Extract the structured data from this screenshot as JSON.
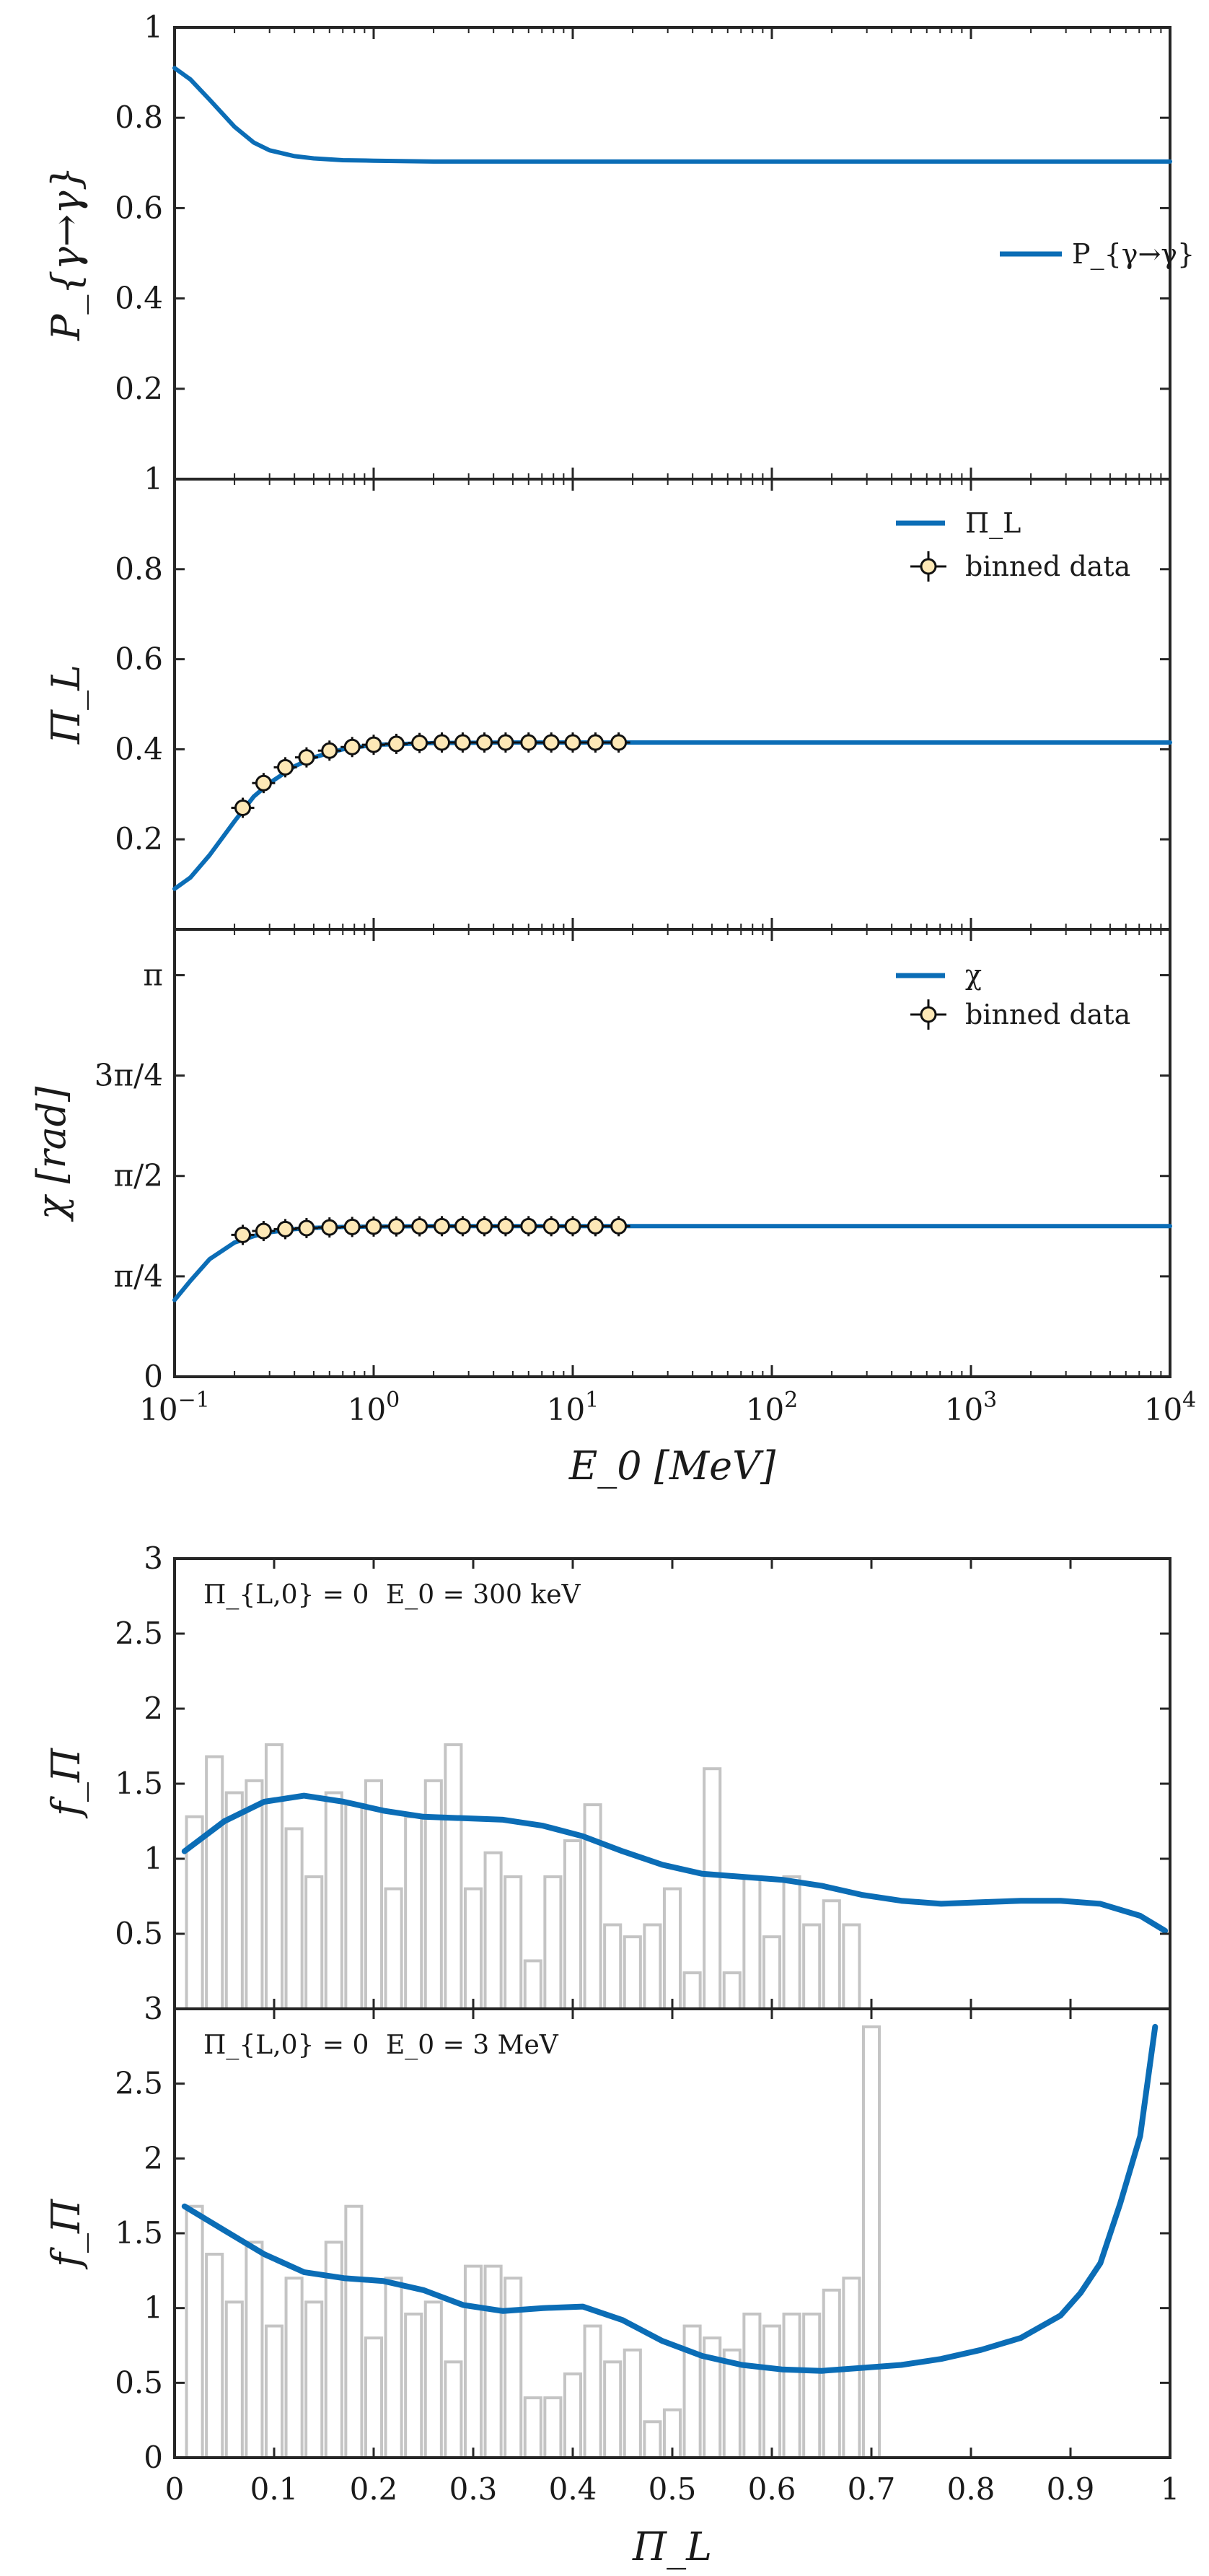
{
  "chart_data": [
    {
      "type": "line",
      "panel": "top",
      "xscale": "log",
      "xlim": [
        0.1,
        10000
      ],
      "ylim": [
        0,
        1
      ],
      "ylabel": "P_{γ→γ}",
      "yticks": [
        0.2,
        0.4,
        0.6,
        0.8,
        1
      ],
      "ytick_labels": [
        "0.2",
        "0.4",
        "0.6",
        "0.8",
        "1"
      ],
      "legend": {
        "placement": "right",
        "entries": [
          "P_{γ→γ}"
        ]
      },
      "series": [
        {
          "name": "P_{γ→γ}",
          "color": "#0b6db6",
          "x": [
            0.1,
            0.12,
            0.15,
            0.2,
            0.25,
            0.3,
            0.4,
            0.5,
            0.7,
            1,
            2,
            5,
            10,
            100,
            10000
          ],
          "y": [
            0.91,
            0.885,
            0.84,
            0.78,
            0.745,
            0.728,
            0.715,
            0.71,
            0.706,
            0.705,
            0.703,
            0.703,
            0.703,
            0.703,
            0.703
          ]
        }
      ]
    },
    {
      "type": "line",
      "panel": "middle",
      "xscale": "log",
      "xlim": [
        0.1,
        10000
      ],
      "ylim": [
        0,
        1
      ],
      "ylabel": "Π_L",
      "yticks": [
        0.2,
        0.4,
        0.6,
        0.8,
        1
      ],
      "ytick_labels": [
        "0.2",
        "0.4",
        "0.6",
        "0.8",
        "1"
      ],
      "legend": {
        "placement": "top-right",
        "entries": [
          "Π_L",
          "binned data"
        ]
      },
      "series": [
        {
          "name": "Π_L",
          "color": "#0b6db6",
          "x": [
            0.1,
            0.12,
            0.15,
            0.2,
            0.25,
            0.3,
            0.4,
            0.5,
            0.7,
            1,
            2,
            5,
            20,
            10000
          ],
          "y": [
            0.09,
            0.115,
            0.165,
            0.24,
            0.295,
            0.325,
            0.362,
            0.382,
            0.4,
            0.41,
            0.414,
            0.415,
            0.415,
            0.415
          ]
        },
        {
          "name": "binned data",
          "marker": "o",
          "x": [
            0.22,
            0.28,
            0.36,
            0.46,
            0.6,
            0.78,
            1.0,
            1.3,
            1.7,
            2.2,
            2.8,
            3.6,
            4.6,
            6.0,
            7.8,
            10.0,
            13.0,
            17.0
          ],
          "y": [
            0.27,
            0.325,
            0.36,
            0.382,
            0.397,
            0.405,
            0.41,
            0.412,
            0.414,
            0.415,
            0.415,
            0.415,
            0.415,
            0.415,
            0.415,
            0.415,
            0.415,
            0.415
          ]
        }
      ]
    },
    {
      "type": "line",
      "panel": "bottom",
      "xscale": "log",
      "xlim": [
        0.1,
        10000
      ],
      "ylim": [
        0,
        3.5
      ],
      "ylabel": "χ [rad]",
      "xlabel": "E_0 [MeV]",
      "yticks": [
        0,
        0.785398,
        1.570796,
        2.356194,
        3.141593
      ],
      "ytick_labels": [
        "0",
        "π/4",
        "π/2",
        "3π/4",
        "π"
      ],
      "xticks": [
        0.1,
        1,
        10,
        100,
        1000,
        10000
      ],
      "xtick_labels": [
        "10−1",
        "100",
        "101",
        "102",
        "103",
        "104"
      ],
      "legend": {
        "placement": "top-right",
        "entries": [
          "χ",
          "binned data"
        ]
      },
      "series": [
        {
          "name": "χ",
          "color": "#0b6db6",
          "x": [
            0.1,
            0.12,
            0.15,
            0.2,
            0.25,
            0.3,
            0.4,
            0.5,
            0.7,
            1,
            2,
            5,
            20,
            10000
          ],
          "y": [
            0.6,
            0.75,
            0.92,
            1.05,
            1.1,
            1.13,
            1.155,
            1.165,
            1.172,
            1.176,
            1.178,
            1.178,
            1.178,
            1.178
          ]
        },
        {
          "name": "binned data",
          "marker": "o",
          "x": [
            0.22,
            0.28,
            0.36,
            0.46,
            0.6,
            0.78,
            1.0,
            1.3,
            1.7,
            2.2,
            2.8,
            3.6,
            4.6,
            6.0,
            7.8,
            10.0,
            13.0,
            17.0
          ],
          "y": [
            1.11,
            1.14,
            1.155,
            1.163,
            1.168,
            1.172,
            1.175,
            1.176,
            1.177,
            1.178,
            1.178,
            1.178,
            1.178,
            1.178,
            1.178,
            1.178,
            1.178,
            1.178
          ]
        }
      ]
    },
    {
      "type": "bar",
      "panel": "hist-top",
      "xlim": [
        0,
        1
      ],
      "ylim": [
        0,
        3
      ],
      "ylabel": "f_Π",
      "yticks": [
        0,
        0.5,
        1,
        1.5,
        2,
        2.5,
        3
      ],
      "ytick_labels": [
        "",
        "0.5",
        "1",
        "1.5",
        "2",
        "2.5",
        "3"
      ],
      "annotation": [
        "Π_{L,0} = 0",
        "E_0 = 300 keV"
      ],
      "bin_width": 0.02,
      "hist_values": [
        1.28,
        1.68,
        1.44,
        1.52,
        1.76,
        1.2,
        0.88,
        1.44,
        1.36,
        1.52,
        0.8,
        1.28,
        1.52,
        1.76,
        0.8,
        1.04,
        0.88,
        0.32,
        0.88,
        1.12,
        1.36,
        0.56,
        0.48,
        0.56,
        0.8,
        0.24,
        1.6,
        0.24,
        0.88,
        0.48,
        0.88,
        0.56,
        0.72,
        0.56
      ],
      "series": [
        {
          "name": "f_Π",
          "color": "#0b6db6",
          "x": [
            0.01,
            0.05,
            0.09,
            0.13,
            0.17,
            0.21,
            0.25,
            0.29,
            0.33,
            0.37,
            0.41,
            0.45,
            0.49,
            0.53,
            0.57,
            0.61,
            0.65,
            0.69,
            0.73,
            0.77,
            0.81,
            0.85,
            0.89,
            0.93,
            0.97,
            0.995
          ],
          "y": [
            1.05,
            1.25,
            1.38,
            1.42,
            1.38,
            1.32,
            1.28,
            1.27,
            1.26,
            1.22,
            1.15,
            1.05,
            0.96,
            0.9,
            0.88,
            0.86,
            0.82,
            0.76,
            0.72,
            0.7,
            0.71,
            0.72,
            0.72,
            0.7,
            0.62,
            0.52
          ]
        }
      ]
    },
    {
      "type": "bar",
      "panel": "hist-bottom",
      "xlim": [
        0,
        1
      ],
      "ylim": [
        0,
        3
      ],
      "ylabel": "f_Π",
      "xlabel": "Π_L",
      "yticks": [
        0,
        0.5,
        1,
        1.5,
        2,
        2.5,
        3
      ],
      "ytick_labels": [
        "0",
        "0.5",
        "1",
        "1.5",
        "2",
        "2.5",
        "3"
      ],
      "xticks": [
        0,
        0.1,
        0.2,
        0.3,
        0.4,
        0.5,
        0.6,
        0.7,
        0.8,
        0.9,
        1
      ],
      "xtick_labels": [
        "0",
        "0.1",
        "0.2",
        "0.3",
        "0.4",
        "0.5",
        "0.6",
        "0.7",
        "0.8",
        "0.9",
        "1"
      ],
      "annotation": [
        "Π_{L,0} = 0",
        "E_0 = 3 MeV"
      ],
      "bin_width": 0.02,
      "hist_values": [
        1.68,
        1.36,
        1.04,
        1.44,
        0.88,
        1.2,
        1.04,
        1.44,
        1.68,
        0.8,
        1.2,
        0.96,
        1.04,
        0.64,
        1.28,
        1.28,
        1.2,
        0.4,
        0.4,
        0.56,
        0.88,
        0.64,
        0.72,
        0.24,
        0.32,
        0.88,
        0.8,
        0.72,
        0.96,
        0.88,
        0.96,
        0.96,
        1.12,
        1.2,
        2.88
      ],
      "series": [
        {
          "name": "f_Π",
          "color": "#0b6db6",
          "x": [
            0.01,
            0.05,
            0.09,
            0.13,
            0.17,
            0.21,
            0.25,
            0.29,
            0.33,
            0.37,
            0.41,
            0.45,
            0.49,
            0.53,
            0.57,
            0.61,
            0.65,
            0.69,
            0.73,
            0.77,
            0.81,
            0.85,
            0.89,
            0.91,
            0.93,
            0.95,
            0.97,
            0.985
          ],
          "y": [
            1.68,
            1.52,
            1.36,
            1.24,
            1.2,
            1.18,
            1.12,
            1.02,
            0.98,
            1.0,
            1.01,
            0.92,
            0.78,
            0.68,
            0.62,
            0.59,
            0.58,
            0.6,
            0.62,
            0.66,
            0.72,
            0.8,
            0.95,
            1.1,
            1.3,
            1.7,
            2.15,
            2.88
          ]
        }
      ]
    }
  ]
}
